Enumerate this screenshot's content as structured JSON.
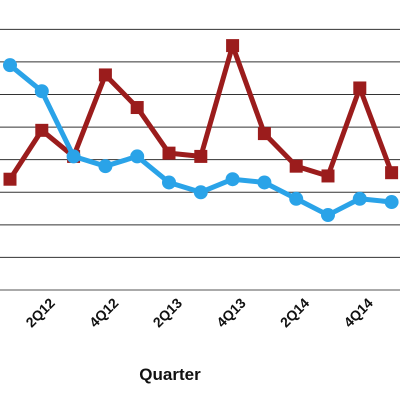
{
  "chart_data": {
    "type": "line",
    "x_label": "Quarter",
    "categories": [
      null,
      "2Q12",
      null,
      "4Q12",
      null,
      "2Q13",
      null,
      "4Q13",
      null,
      "2Q14",
      null,
      "4Q14",
      null
    ],
    "series": [
      {
        "color": "#9b1c1c",
        "marker": "square",
        "values": [
          3.4,
          4.9,
          4.1,
          6.6,
          5.6,
          4.2,
          4.1,
          7.5,
          4.8,
          3.8,
          3.5,
          6.2,
          3.6
        ]
      },
      {
        "color": "#2aa3e8",
        "marker": "circle",
        "values": [
          6.9,
          6.1,
          4.1,
          3.8,
          4.1,
          3.3,
          3.0,
          3.4,
          3.3,
          2.8,
          2.3,
          2.8,
          2.7
        ]
      }
    ],
    "ylim": [
      0,
      8.9
    ],
    "yticks": [
      0,
      1,
      2,
      3,
      4,
      5,
      6,
      7,
      8
    ],
    "grid": true
  }
}
